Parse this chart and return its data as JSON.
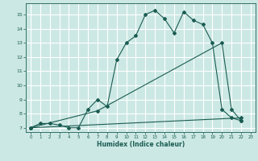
{
  "xlabel": "Humidex (Indice chaleur)",
  "bg_color": "#cce8e4",
  "line_color": "#1a5c52",
  "grid_color": "#ffffff",
  "xlim": [
    -0.5,
    23.5
  ],
  "ylim": [
    6.7,
    15.8
  ],
  "xticks": [
    0,
    1,
    2,
    3,
    4,
    5,
    6,
    7,
    8,
    9,
    10,
    11,
    12,
    13,
    14,
    15,
    16,
    17,
    18,
    19,
    20,
    21,
    22,
    23
  ],
  "yticks": [
    7,
    8,
    9,
    10,
    11,
    12,
    13,
    14,
    15
  ],
  "line1_x": [
    0,
    1,
    2,
    3,
    4,
    5,
    6,
    7,
    8,
    9,
    10,
    11,
    12,
    13,
    14,
    15,
    16,
    17,
    18,
    19,
    20,
    21,
    22
  ],
  "line1_y": [
    7.0,
    7.3,
    7.3,
    7.2,
    7.0,
    7.0,
    8.3,
    9.0,
    8.5,
    11.8,
    13.0,
    13.5,
    15.0,
    15.3,
    14.7,
    13.7,
    15.2,
    14.6,
    14.3,
    13.0,
    8.3,
    7.7,
    7.5
  ],
  "line2_x": [
    0,
    7,
    20,
    21,
    22
  ],
  "line2_y": [
    7.0,
    8.2,
    13.0,
    8.3,
    7.5
  ],
  "line3_x": [
    0,
    22
  ],
  "line3_y": [
    7.0,
    7.7
  ]
}
